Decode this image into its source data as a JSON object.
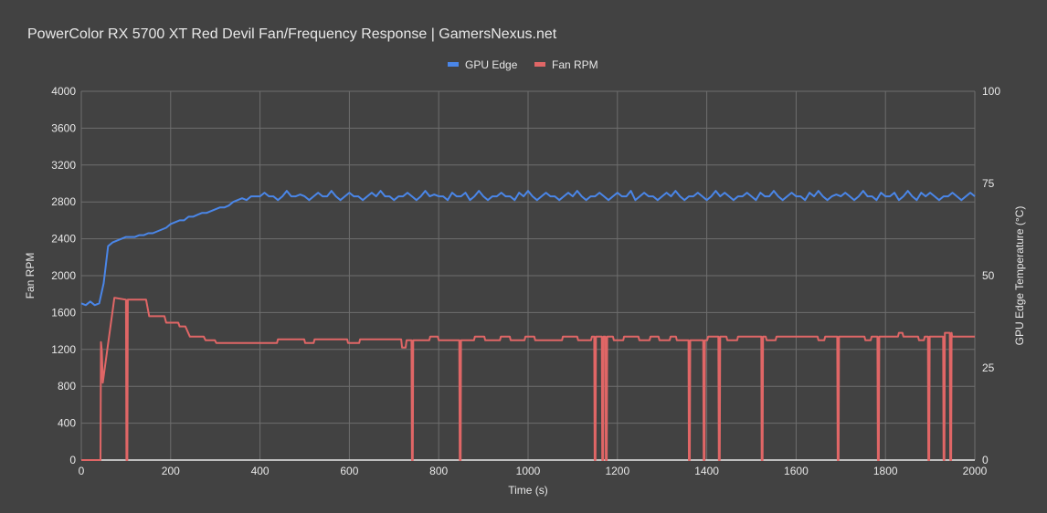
{
  "chart_data": {
    "type": "line",
    "title": "PowerColor RX 5700 XT Red Devil Fan/Frequency Response | GamersNexus.net",
    "xlabel": "Time (s)",
    "ylabel": "Fan RPM",
    "y2label": "GPU Edge Temperature (°C)",
    "xlim": [
      0,
      2000
    ],
    "ylim": [
      0,
      4000
    ],
    "y2lim": [
      0,
      100
    ],
    "x_ticks": [
      "0",
      "200",
      "400",
      "600",
      "800",
      "1000",
      "1200",
      "1400",
      "1600",
      "1800",
      "2000"
    ],
    "y_ticks": [
      "0",
      "400",
      "800",
      "1200",
      "1600",
      "2000",
      "2400",
      "2800",
      "3200",
      "3600",
      "4000"
    ],
    "y2_ticks": [
      "0",
      "25",
      "50",
      "75",
      "100"
    ],
    "grid": true,
    "legend_position": "top",
    "background": "#424242",
    "series": [
      {
        "name": "GPU Edge",
        "axis": "right",
        "color": "#4a86e8",
        "x_step": 10,
        "values": [
          42.5,
          42,
          43,
          42,
          42.5,
          48,
          58,
          59,
          59.5,
          60,
          60.5,
          60.5,
          60.5,
          61,
          61,
          61.5,
          61.5,
          62,
          62.5,
          63,
          64,
          64.5,
          65,
          65,
          66,
          66,
          66.5,
          67,
          67,
          67.5,
          68,
          68.5,
          68.5,
          69,
          70,
          70.5,
          71,
          70.5,
          71.5,
          71.5,
          71.5,
          72.5,
          71.5,
          71.5,
          70.5,
          71.5,
          73,
          71.5,
          71.5,
          72,
          71.5,
          70.5,
          71.5,
          72.5,
          71.5,
          71.5,
          73,
          71.5,
          70.5,
          71.5,
          72.5,
          71.5,
          71.5,
          70.5,
          71.5,
          72.5,
          71.5,
          73,
          71.5,
          71.5,
          70.5,
          71.5,
          71.5,
          72.5,
          71.5,
          70.5,
          71.5,
          73,
          71.5,
          72,
          71.5,
          71.5,
          70.5,
          72.5,
          71.5,
          71.5,
          72.5,
          70.5,
          71.5,
          73,
          71.5,
          70.5,
          71.5,
          71.5,
          72.5,
          71.5,
          71.5,
          70.5,
          72.5,
          71.5,
          73,
          71.5,
          70.5,
          71.5,
          72.5,
          71.5,
          71.5,
          70.5,
          71.5,
          72.5,
          71.5,
          73,
          71.5,
          70.5,
          71.5,
          71.5,
          72.5,
          71.5,
          70.5,
          71.5,
          72.5,
          71.5,
          71.5,
          73,
          70.5,
          71.5,
          72.5,
          71.5,
          71.5,
          70.5,
          71.5,
          72.5,
          71.5,
          73,
          71.5,
          70.5,
          71.5,
          71.5,
          72.5,
          71.5,
          70.5,
          71.5,
          73,
          71.5,
          72.5,
          71.5,
          70.5,
          71.5,
          71.5,
          72.5,
          71.5,
          70.5,
          72.5,
          71.5,
          71.5,
          73,
          71.5,
          70.5,
          71.5,
          72.5,
          71.5,
          71.5,
          70.5,
          72.5,
          71.5,
          73,
          71.5,
          70.5,
          71.5,
          72,
          71.5,
          72.5,
          71.5,
          70.5,
          71.5,
          73,
          71.5,
          71.5,
          70.5,
          72.5,
          71.5,
          71.5,
          72.5,
          70.5,
          71.5,
          73,
          71.5,
          70.5,
          72.5,
          71.5,
          72.5,
          71.5,
          70.5,
          71.5,
          71.5,
          72.5,
          71.5,
          70.5,
          71.5,
          72.5,
          71.5
        ]
      },
      {
        "name": "Fan RPM",
        "axis": "left",
        "color": "#e06666",
        "points": [
          [
            0,
            0
          ],
          [
            43,
            0
          ],
          [
            44,
            1280
          ],
          [
            46,
            1180
          ],
          [
            48,
            840
          ],
          [
            74,
            1760
          ],
          [
            100,
            1740
          ],
          [
            101,
            0
          ],
          [
            103,
            0
          ],
          [
            104,
            1740
          ],
          [
            145,
            1740
          ],
          [
            152,
            1560
          ],
          [
            186,
            1560
          ],
          [
            190,
            1490
          ],
          [
            217,
            1490
          ],
          [
            220,
            1450
          ],
          [
            233,
            1450
          ],
          [
            243,
            1340
          ],
          [
            274,
            1340
          ],
          [
            278,
            1300
          ],
          [
            299,
            1300
          ],
          [
            302,
            1270
          ],
          [
            438,
            1270
          ],
          [
            440,
            1310
          ],
          [
            499,
            1310
          ],
          [
            501,
            1270
          ],
          [
            520,
            1270
          ],
          [
            522,
            1310
          ],
          [
            595,
            1310
          ],
          [
            597,
            1270
          ],
          [
            622,
            1270
          ],
          [
            624,
            1310
          ],
          [
            716,
            1310
          ],
          [
            718,
            1220
          ],
          [
            726,
            1220
          ],
          [
            728,
            1300
          ],
          [
            739,
            1300
          ],
          [
            740,
            0
          ],
          [
            742,
            0
          ],
          [
            743,
            1300
          ],
          [
            779,
            1300
          ],
          [
            781,
            1340
          ],
          [
            798,
            1340
          ],
          [
            800,
            1300
          ],
          [
            846,
            1300
          ],
          [
            847,
            0
          ],
          [
            849,
            0
          ],
          [
            850,
            1300
          ],
          [
            879,
            1300
          ],
          [
            881,
            1340
          ],
          [
            902,
            1340
          ],
          [
            904,
            1300
          ],
          [
            937,
            1300
          ],
          [
            939,
            1340
          ],
          [
            959,
            1340
          ],
          [
            961,
            1300
          ],
          [
            992,
            1300
          ],
          [
            994,
            1340
          ],
          [
            1014,
            1340
          ],
          [
            1016,
            1300
          ],
          [
            1076,
            1300
          ],
          [
            1078,
            1340
          ],
          [
            1110,
            1340
          ],
          [
            1112,
            1300
          ],
          [
            1141,
            1300
          ],
          [
            1143,
            1340
          ],
          [
            1148,
            1340
          ],
          [
            1149,
            0
          ],
          [
            1151,
            0
          ],
          [
            1152,
            1340
          ],
          [
            1165,
            1340
          ],
          [
            1166,
            0
          ],
          [
            1168,
            0
          ],
          [
            1169,
            1340
          ],
          [
            1173,
            1340
          ],
          [
            1174,
            0
          ],
          [
            1176,
            0
          ],
          [
            1177,
            1340
          ],
          [
            1190,
            1340
          ],
          [
            1192,
            1300
          ],
          [
            1213,
            1300
          ],
          [
            1215,
            1340
          ],
          [
            1247,
            1340
          ],
          [
            1249,
            1300
          ],
          [
            1272,
            1300
          ],
          [
            1274,
            1340
          ],
          [
            1292,
            1340
          ],
          [
            1294,
            1300
          ],
          [
            1317,
            1300
          ],
          [
            1319,
            1340
          ],
          [
            1331,
            1340
          ],
          [
            1333,
            1300
          ],
          [
            1359,
            1300
          ],
          [
            1360,
            0
          ],
          [
            1362,
            0
          ],
          [
            1363,
            1300
          ],
          [
            1392,
            1300
          ],
          [
            1393,
            0
          ],
          [
            1395,
            0
          ],
          [
            1396,
            1300
          ],
          [
            1401,
            1300
          ],
          [
            1403,
            1340
          ],
          [
            1426,
            1340
          ],
          [
            1427,
            0
          ],
          [
            1429,
            0
          ],
          [
            1430,
            1340
          ],
          [
            1444,
            1340
          ],
          [
            1446,
            1300
          ],
          [
            1468,
            1300
          ],
          [
            1470,
            1340
          ],
          [
            1522,
            1340
          ],
          [
            1523,
            0
          ],
          [
            1525,
            0
          ],
          [
            1526,
            1340
          ],
          [
            1532,
            1340
          ],
          [
            1534,
            1300
          ],
          [
            1554,
            1300
          ],
          [
            1556,
            1340
          ],
          [
            1648,
            1340
          ],
          [
            1650,
            1300
          ],
          [
            1663,
            1300
          ],
          [
            1665,
            1340
          ],
          [
            1692,
            1340
          ],
          [
            1693,
            0
          ],
          [
            1695,
            0
          ],
          [
            1696,
            1340
          ],
          [
            1753,
            1340
          ],
          [
            1755,
            1300
          ],
          [
            1767,
            1300
          ],
          [
            1769,
            1340
          ],
          [
            1782,
            1340
          ],
          [
            1783,
            0
          ],
          [
            1785,
            0
          ],
          [
            1786,
            1340
          ],
          [
            1828,
            1340
          ],
          [
            1830,
            1380
          ],
          [
            1838,
            1380
          ],
          [
            1840,
            1340
          ],
          [
            1873,
            1340
          ],
          [
            1875,
            1300
          ],
          [
            1886,
            1300
          ],
          [
            1888,
            1340
          ],
          [
            1895,
            1340
          ],
          [
            1896,
            0
          ],
          [
            1898,
            0
          ],
          [
            1899,
            1340
          ],
          [
            1929,
            1340
          ],
          [
            1930,
            0
          ],
          [
            1932,
            0
          ],
          [
            1933,
            1380
          ],
          [
            1944,
            1380
          ],
          [
            1945,
            0
          ],
          [
            1947,
            0
          ],
          [
            1948,
            1380
          ],
          [
            1949,
            1340
          ],
          [
            2000,
            1340
          ]
        ]
      }
    ]
  }
}
